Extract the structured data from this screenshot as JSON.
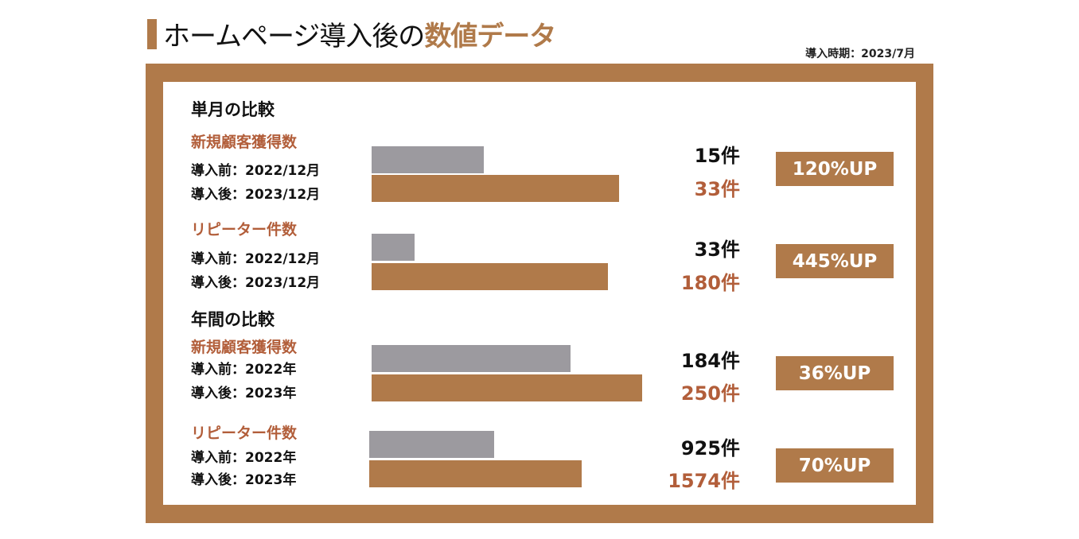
{
  "header": {
    "title_plain": "ホームページ導入後の",
    "title_accent": "数値データ",
    "period": "導入時期：2023/7月"
  },
  "colors": {
    "accent": "#B07A4A",
    "label": "#B25E3A",
    "before_bar": "#9C9A9F"
  },
  "chart_data": {
    "type": "bar",
    "orientation": "horizontal",
    "sections": [
      {
        "title": "単月の比較"
      },
      {
        "title": "年間の比較"
      }
    ],
    "groups": [
      {
        "section": 0,
        "label": "新規顧客獲得数",
        "before_label": "導入前：2022/12月",
        "after_label": "導入後：2023/12月",
        "before": 15,
        "after": 33,
        "before_text": "15件",
        "after_text": "33件",
        "badge": "120%UP"
      },
      {
        "section": 0,
        "label": "リピーター件数",
        "before_label": "導入前：2022/12月",
        "after_label": "導入後：2023/12月",
        "before": 33,
        "after": 180,
        "before_text": "33件",
        "after_text": "180件",
        "badge": "445%UP"
      },
      {
        "section": 1,
        "label": "新規顧客獲得数",
        "before_label": "導入前：2022年",
        "after_label": "導入後：2023年",
        "before": 184,
        "after": 250,
        "before_text": "184件",
        "after_text": "250件",
        "badge": "36%UP"
      },
      {
        "section": 1,
        "label": "リピーター件数",
        "before_label": "導入前：2022年",
        "after_label": "導入後：2023年",
        "before": 925,
        "after": 1574,
        "before_text": "925件",
        "after_text": "1574件",
        "badge": "70%UP"
      }
    ]
  }
}
